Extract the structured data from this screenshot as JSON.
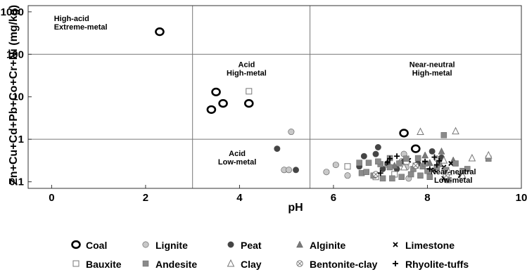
{
  "chart_data": {
    "type": "scatter",
    "xlabel": "pH",
    "ylabel": "Zn+Cu+Cd+Pb+Co+Cr+Ni (mg/kg)",
    "xlim": [
      -0.5,
      10
    ],
    "ylim": [
      0.07,
      1400
    ],
    "y_scale": "log",
    "grid": false,
    "x_ticks": [
      "0",
      "2",
      "4",
      "6",
      "8",
      "10"
    ],
    "x_tick_values": [
      0,
      2,
      4,
      6,
      8,
      10
    ],
    "y_ticks": [
      "1000",
      "100",
      "10",
      "1",
      "0.1"
    ],
    "y_tick_values": [
      1000,
      100,
      10,
      1,
      0.1
    ],
    "divider_x": [
      3,
      5.5
    ],
    "divider_y": [
      100,
      1
    ],
    "regions": [
      {
        "lines": [
          "High-acid",
          "Extreme-metal"
        ],
        "x": 0.05,
        "y": 600
      },
      {
        "lines": [
          "Acid",
          "High-metal"
        ],
        "x": 4.15,
        "y": 50
      },
      {
        "lines": [
          "Near-neutral",
          "High-metal"
        ],
        "x": 8.1,
        "y": 50
      },
      {
        "lines": [
          "Acid",
          "Low-metal"
        ],
        "x": 3.95,
        "y": 0.4
      },
      {
        "lines": [
          "Near-neutral",
          "Low-metal"
        ],
        "x": 8.55,
        "y": 0.15
      }
    ],
    "legend_position": "bottom",
    "series": [
      {
        "name": "Coal",
        "marker": "open-circle-bold",
        "color": "#000000",
        "points": [
          [
            2.3,
            340
          ],
          [
            3.5,
            13
          ],
          [
            3.65,
            7
          ],
          [
            3.4,
            5
          ],
          [
            4.2,
            7
          ],
          [
            7.5,
            1.4
          ],
          [
            7.75,
            0.6
          ]
        ]
      },
      {
        "name": "Lignite",
        "marker": "filled-circle",
        "color": "#c8c8c8",
        "points": [
          [
            5.1,
            1.5
          ],
          [
            4.95,
            0.19
          ],
          [
            5.05,
            0.19
          ],
          [
            5.85,
            0.17
          ],
          [
            6.05,
            0.25
          ],
          [
            7.5,
            0.45
          ],
          [
            7.15,
            0.25
          ],
          [
            7.45,
            0.3
          ],
          [
            7.55,
            0.22
          ],
          [
            6.3,
            0.14
          ],
          [
            7.6,
            0.12
          ],
          [
            8.2,
            0.35
          ]
        ]
      },
      {
        "name": "Peat",
        "marker": "filled-circle",
        "color": "#444444",
        "points": [
          [
            4.8,
            0.6
          ],
          [
            5.2,
            0.19
          ],
          [
            6.55,
            0.23
          ],
          [
            6.65,
            0.4
          ],
          [
            6.9,
            0.45
          ],
          [
            6.95,
            0.65
          ],
          [
            7.15,
            0.27
          ],
          [
            7.05,
            0.2
          ],
          [
            7.5,
            0.3
          ],
          [
            7.35,
            0.2
          ],
          [
            7.8,
            0.27
          ],
          [
            8.1,
            0.52
          ],
          [
            8.3,
            0.37
          ]
        ]
      },
      {
        "name": "Alginite",
        "marker": "filled-triangle",
        "color": "#7a7a7a",
        "points": [
          [
            8.3,
            0.52
          ],
          [
            7.3,
            0.24
          ],
          [
            8.05,
            0.28
          ],
          [
            8.55,
            0.32
          ],
          [
            7.95,
            0.42
          ]
        ]
      },
      {
        "name": "Limestone",
        "marker": "x",
        "color": "#000000",
        "points": [
          [
            8.35,
            0.22
          ],
          [
            8.7,
            0.14
          ],
          [
            8.5,
            0.27
          ],
          [
            7.6,
            0.32
          ],
          [
            8.35,
            0.12
          ],
          [
            8.15,
            0.19
          ]
        ]
      },
      {
        "name": "Bauxite",
        "marker": "open-square",
        "color": "#777777",
        "points": [
          [
            4.2,
            13.5
          ],
          [
            6.3,
            0.23
          ],
          [
            6.9,
            0.13
          ],
          [
            7.3,
            0.15
          ],
          [
            7.55,
            0.3
          ]
        ]
      },
      {
        "name": "Andesite",
        "marker": "filled-square",
        "color": "#8a8a8a",
        "points": [
          [
            8.35,
            1.25
          ],
          [
            9.3,
            0.35
          ],
          [
            6.55,
            0.28
          ],
          [
            6.75,
            0.28
          ],
          [
            7.0,
            0.26
          ],
          [
            7.2,
            0.22
          ],
          [
            7.4,
            0.27
          ],
          [
            7.7,
            0.2
          ],
          [
            7.9,
            0.23
          ],
          [
            8.0,
            0.18
          ],
          [
            8.2,
            0.22
          ],
          [
            8.4,
            0.19
          ],
          [
            8.6,
            0.27
          ],
          [
            8.75,
            0.18
          ],
          [
            8.85,
            0.2
          ],
          [
            6.6,
            0.16
          ],
          [
            6.85,
            0.14
          ],
          [
            7.05,
            0.12
          ],
          [
            7.25,
            0.12
          ],
          [
            7.45,
            0.13
          ],
          [
            7.65,
            0.15
          ],
          [
            7.85,
            0.14
          ],
          [
            8.05,
            0.13
          ],
          [
            8.45,
            0.11
          ],
          [
            6.95,
            0.3
          ],
          [
            7.2,
            0.36
          ],
          [
            7.55,
            0.35
          ],
          [
            7.75,
            0.24
          ],
          [
            7.95,
            0.27
          ],
          [
            8.25,
            0.26
          ],
          [
            6.7,
            0.17
          ],
          [
            7.8,
            0.36
          ]
        ]
      },
      {
        "name": "Clay",
        "marker": "open-triangle",
        "color": "#777777",
        "points": [
          [
            7.85,
            1.5
          ],
          [
            8.6,
            1.55
          ],
          [
            9.3,
            0.42
          ],
          [
            8.35,
            0.32
          ],
          [
            8.95,
            0.36
          ],
          [
            8.45,
            0.17
          ],
          [
            8.75,
            0.14
          ],
          [
            7.5,
            0.22
          ]
        ]
      },
      {
        "name": "Bentonite-clay",
        "marker": "circle-x",
        "color": "#777777",
        "points": [
          [
            7.75,
            0.24
          ],
          [
            8.4,
            0.14
          ],
          [
            6.9,
            0.15
          ]
        ]
      },
      {
        "name": "Rhyolite-tuffs",
        "marker": "plus",
        "color": "#000000",
        "points": [
          [
            7.2,
            0.35
          ],
          [
            7.35,
            0.4
          ],
          [
            7.15,
            0.29
          ],
          [
            7.95,
            0.3
          ],
          [
            8.2,
            0.25
          ],
          [
            8.25,
            0.31
          ],
          [
            7.0,
            0.16
          ],
          [
            8.05,
            0.2
          ],
          [
            8.15,
            0.38
          ]
        ]
      }
    ]
  }
}
